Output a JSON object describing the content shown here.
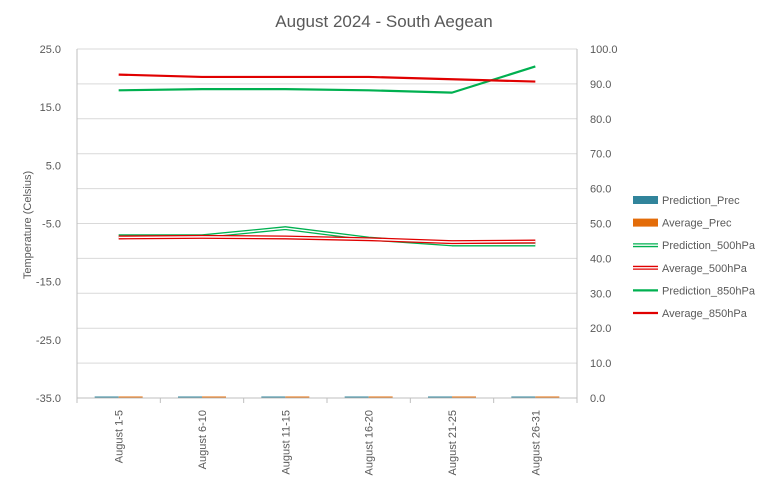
{
  "chart_data": {
    "type": "line",
    "title": "August 2024 - South Aegean",
    "ylabel": "Temperature  (Celsius)",
    "y2label": "",
    "categories": [
      "August 1-5",
      "August 6-10",
      "August 11-15",
      "August 16-20",
      "August 21-25",
      "August 26-31"
    ],
    "ylim": [
      -35,
      25
    ],
    "yticks": [
      25.0,
      15.0,
      5.0,
      -5.0,
      -15.0,
      -25.0,
      -35.0
    ],
    "ytick_labels": [
      "25.0",
      "15.0",
      "5.0",
      "-5.0",
      "-15.0",
      "-25.0",
      "-35.0"
    ],
    "y2lim": [
      0,
      100
    ],
    "y2ticks": [
      100.0,
      90.0,
      80.0,
      70.0,
      60.0,
      50.0,
      40.0,
      30.0,
      20.0,
      10.0,
      0.0
    ],
    "y2tick_labels": [
      "100.0",
      "90.0",
      "80.0",
      "70.0",
      "60.0",
      "50.0",
      "40.0",
      "30.0",
      "20.0",
      "10.0",
      "0.0"
    ],
    "grid": true,
    "legend_position": "right",
    "series": [
      {
        "name": "Prediction_Prec",
        "kind": "bar",
        "axis": "right",
        "color": "#31849B",
        "values": [
          0,
          0,
          0,
          0,
          0,
          0
        ]
      },
      {
        "name": "Average_Prec",
        "kind": "bar",
        "axis": "right",
        "color": "#E36C09",
        "values": [
          0,
          0,
          0,
          0,
          0,
          0
        ]
      },
      {
        "name": "Prediction_500hPa",
        "kind": "line",
        "style": "double",
        "axis": "left",
        "color": "#00B050",
        "values": [
          -7.2,
          -7.2,
          -5.8,
          -7.6,
          -8.6,
          -8.6
        ]
      },
      {
        "name": "Average_500hPa",
        "kind": "line",
        "style": "double",
        "axis": "left",
        "color": "#E00000",
        "values": [
          -7.4,
          -7.3,
          -7.4,
          -7.7,
          -8.2,
          -8.1
        ]
      },
      {
        "name": "Prediction_850hPa",
        "kind": "line",
        "style": "solid",
        "axis": "left",
        "color": "#00B050",
        "values": [
          17.9,
          18.1,
          18.1,
          17.9,
          17.5,
          22.0
        ]
      },
      {
        "name": "Average_850hPa",
        "kind": "line",
        "style": "solid",
        "axis": "left",
        "color": "#E00000",
        "values": [
          20.6,
          20.2,
          20.2,
          20.2,
          19.8,
          19.4
        ]
      }
    ]
  }
}
